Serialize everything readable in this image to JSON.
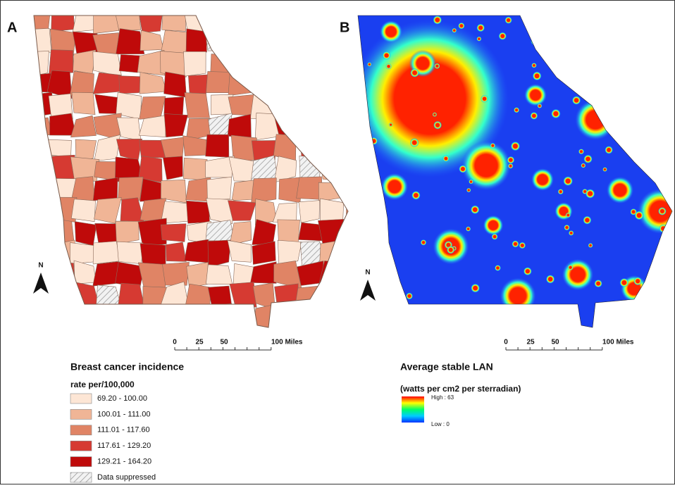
{
  "panels": [
    {
      "label": "A",
      "north": "N",
      "scale": [
        "0",
        "25",
        "50",
        "100 Miles"
      ],
      "legend": {
        "title": "Breast cancer incidence",
        "subtitle": "rate per/100,000",
        "items": [
          {
            "label": "69.20 - 100.00",
            "color": "#fde6d5"
          },
          {
            "label": "100.01 - 111.00",
            "color": "#f0b596"
          },
          {
            "label": "111.01 - 117.60",
            "color": "#e08465"
          },
          {
            "label": "117.61 - 129.20",
            "color": "#d63a32"
          },
          {
            "label": "129.21 - 164.20",
            "color": "#bf0a0a"
          },
          {
            "label": "Data suppressed",
            "color": "hatch"
          }
        ]
      }
    },
    {
      "label": "B",
      "north": "N",
      "scale": [
        "0",
        "25",
        "50",
        "100 Miles"
      ],
      "legend": {
        "title": "Average stable LAN",
        "subtitle": "(watts per cm2 per sterradian)",
        "high": "High : 63",
        "low": "Low : 0"
      }
    }
  ]
}
